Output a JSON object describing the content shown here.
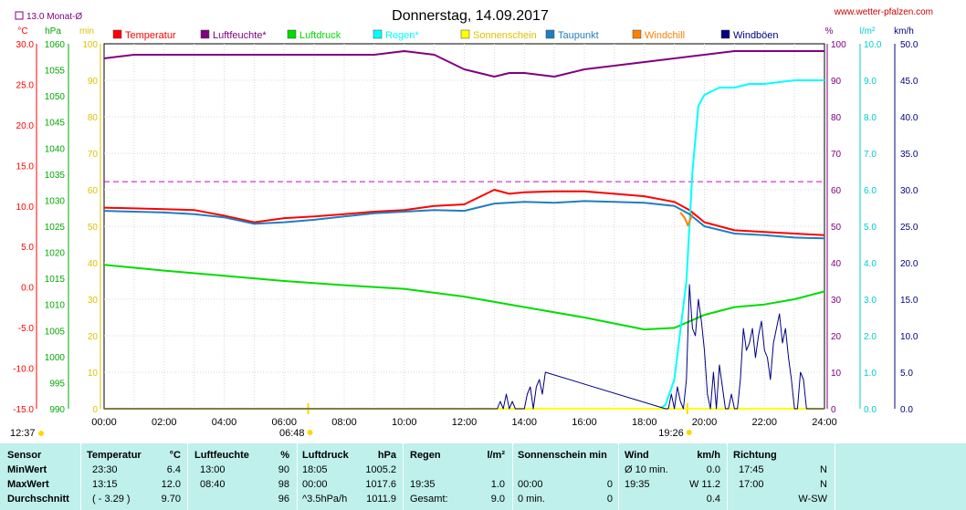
{
  "header": {
    "title": "Donnerstag, 14.09.2017",
    "url": "www.wetter-pfalzen.com",
    "month_avg": "13.0 Monat-Ø"
  },
  "legend": [
    {
      "label": "Temperatur",
      "color": "#ff0000"
    },
    {
      "label": "Luftfeuchte*",
      "color": "#800080"
    },
    {
      "label": "Luftdruck",
      "color": "#00dd00"
    },
    {
      "label": "Regen*",
      "color": "#00ffff"
    },
    {
      "label": "Sonnenschein",
      "color": "#ffff00"
    },
    {
      "label": "Taupunkt",
      "color": "#1e7fbf"
    },
    {
      "label": "Windchill",
      "color": "#ff8000"
    },
    {
      "label": "Windböen",
      "color": "#000080"
    }
  ],
  "chart_data": {
    "type": "line",
    "x_ticks": [
      "00:00",
      "02:00",
      "04:00",
      "06:00",
      "08:00",
      "10:00",
      "12:00",
      "14:00",
      "16:00",
      "18:00",
      "20:00",
      "22:00",
      "24:00"
    ],
    "time_markers": [
      {
        "label": "12:37",
        "hour": null,
        "color": "#ffd700"
      },
      {
        "label": "06:48",
        "hour": 6.8,
        "color": "#ffd700"
      },
      {
        "label": "19:26",
        "hour": 19.43,
        "color": "#ffd700"
      }
    ],
    "axes": {
      "temperature": {
        "unit": "°C",
        "range": [
          -15,
          30
        ],
        "ticks": [
          "30.0",
          "25.0",
          "20.0",
          "15.0",
          "10.0",
          "5.0",
          "0.0",
          "-5.0",
          "-10.0",
          "-15.0"
        ],
        "color": "#ff0000"
      },
      "pressure": {
        "unit": "hPa",
        "range": [
          990,
          1060
        ],
        "ticks": [
          "1060",
          "1055",
          "1050",
          "1045",
          "1040",
          "1035",
          "1030",
          "1025",
          "1020",
          "1015",
          "1010",
          "1005",
          "1000",
          "995",
          "990"
        ],
        "color": "#00aa00"
      },
      "sunshine": {
        "unit": "min",
        "range": [
          0,
          100
        ],
        "ticks": [
          "100",
          "90",
          "80",
          "70",
          "60",
          "50",
          "40",
          "30",
          "20",
          "10",
          "0"
        ],
        "color": "#ffd700"
      },
      "humidity": {
        "unit": "%",
        "range": [
          0,
          100
        ],
        "ticks": [
          "100",
          "90",
          "80",
          "70",
          "60",
          "50",
          "40",
          "30",
          "20",
          "10",
          "0"
        ],
        "color": "#800080"
      },
      "rain": {
        "unit": "l/m²",
        "range": [
          0,
          10
        ],
        "ticks": [
          "10.0",
          "9.0",
          "8.0",
          "7.0",
          "6.0",
          "5.0",
          "4.0",
          "3.0",
          "2.0",
          "1.0",
          "0.0"
        ],
        "color": "#00cccc"
      },
      "wind": {
        "unit": "km/h",
        "range": [
          0,
          50
        ],
        "ticks": [
          "50.0",
          "45.0",
          "40.0",
          "35.0",
          "30.0",
          "25.0",
          "20.0",
          "15.0",
          "10.0",
          "5.0",
          "0.0"
        ],
        "color": "#000080"
      }
    },
    "month_avg_temperature": 13.0,
    "series": [
      {
        "name": "Temperatur",
        "axis": "temperature",
        "color": "#ff0000",
        "x": [
          0,
          1,
          2,
          3,
          4,
          5,
          6,
          7,
          8,
          9,
          10,
          11,
          12,
          13,
          13.5,
          14,
          15,
          16,
          17,
          18,
          19,
          19.5,
          20,
          21,
          22,
          23,
          24
        ],
        "y": [
          9.8,
          9.7,
          9.6,
          9.5,
          8.8,
          8.0,
          8.5,
          8.7,
          9.0,
          9.3,
          9.5,
          10.0,
          10.2,
          12.0,
          11.5,
          11.7,
          11.8,
          11.8,
          11.5,
          11.2,
          10.5,
          9.5,
          8.0,
          7.0,
          6.8,
          6.6,
          6.4
        ]
      },
      {
        "name": "Luftfeuchte*",
        "axis": "humidity",
        "color": "#800080",
        "x": [
          0,
          1,
          2,
          3,
          4,
          5,
          6,
          7,
          8,
          9,
          10,
          11,
          12,
          13,
          13.5,
          14,
          15,
          16,
          17,
          18,
          19,
          20,
          21,
          22,
          23,
          24
        ],
        "y": [
          96,
          97,
          97,
          97,
          97,
          97,
          97,
          97,
          97,
          97,
          98,
          97,
          93,
          91,
          92,
          92,
          91,
          93,
          94,
          95,
          96,
          97,
          98,
          98,
          98,
          98
        ]
      },
      {
        "name": "Luftdruck",
        "axis": "pressure",
        "color": "#00dd00",
        "x": [
          0,
          2,
          4,
          6,
          8,
          10,
          12,
          14,
          16,
          18,
          19,
          20,
          21,
          22,
          23,
          24
        ],
        "y": [
          1017.6,
          1016.5,
          1015.5,
          1014.5,
          1013.7,
          1013.0,
          1011.5,
          1009.5,
          1007.5,
          1005.2,
          1005.5,
          1008.0,
          1009.5,
          1010.0,
          1011.0,
          1012.5
        ]
      },
      {
        "name": "Regen*",
        "axis": "rain",
        "color": "#00ffff",
        "x": [
          0,
          18.5,
          18.7,
          19.0,
          19.4,
          19.6,
          19.8,
          20,
          20.5,
          21,
          21.5,
          22,
          23,
          24
        ],
        "y": [
          0,
          0,
          0.1,
          0.8,
          3.5,
          6.5,
          8.3,
          8.6,
          8.8,
          8.8,
          8.9,
          8.9,
          9.0,
          9.0
        ]
      },
      {
        "name": "Sonnenschein",
        "axis": "sunshine",
        "color": "#ffff00",
        "x": [
          0,
          24
        ],
        "y": [
          0,
          0
        ]
      },
      {
        "name": "Taupunkt",
        "axis": "temperature",
        "color": "#1e7fbf",
        "x": [
          0,
          1,
          2,
          3,
          4,
          5,
          6,
          7,
          8,
          9,
          10,
          11,
          12,
          13,
          14,
          15,
          16,
          17,
          18,
          19,
          19.5,
          20,
          21,
          22,
          23,
          24
        ],
        "y": [
          9.4,
          9.3,
          9.2,
          9.0,
          8.6,
          7.8,
          8.0,
          8.3,
          8.7,
          9.1,
          9.3,
          9.5,
          9.4,
          10.3,
          10.5,
          10.4,
          10.6,
          10.5,
          10.4,
          10.0,
          9.0,
          7.5,
          6.6,
          6.4,
          6.1,
          6.0
        ]
      },
      {
        "name": "Windchill",
        "axis": "temperature",
        "color": "#ff8000",
        "x": [
          19.2,
          19.35,
          19.45,
          19.6
        ],
        "y": [
          9.2,
          8.5,
          7.6,
          9.0
        ]
      },
      {
        "name": "Windböen",
        "axis": "wind",
        "color": "#000080",
        "x": [
          0,
          13.0,
          13.1,
          13.2,
          13.3,
          13.4,
          13.5,
          13.6,
          13.7,
          13.8,
          14.0,
          14.1,
          14.2,
          14.3,
          14.4,
          14.5,
          14.6,
          14.7,
          18.7,
          18.8,
          18.9,
          19.0,
          19.1,
          19.2,
          19.3,
          19.4,
          19.5,
          19.6,
          19.7,
          19.8,
          19.9,
          20.0,
          20.1,
          20.2,
          20.3,
          20.4,
          20.5,
          20.6,
          20.7,
          20.8,
          20.9,
          21.0,
          21.1,
          21.2,
          21.3,
          21.4,
          21.5,
          21.6,
          21.7,
          21.8,
          21.9,
          22.0,
          22.1,
          22.2,
          22.3,
          22.4,
          22.5,
          22.6,
          22.7,
          22.8,
          22.9,
          23.0,
          23.1,
          23.2,
          23.3,
          23.4,
          23.5,
          24
        ],
        "y": [
          0,
          0,
          0,
          1,
          0,
          2,
          0,
          1,
          0,
          0,
          0,
          2,
          3,
          0,
          3,
          4,
          2,
          5,
          0,
          0,
          2,
          0,
          3,
          1,
          0,
          4,
          17,
          11,
          10,
          15,
          12,
          8,
          2,
          0,
          5,
          0,
          6,
          3,
          0,
          0,
          2,
          0,
          0,
          4,
          11,
          8,
          9,
          11,
          7,
          10,
          12,
          8,
          7,
          4,
          9,
          11,
          13,
          9,
          11,
          7,
          4,
          0,
          0,
          5,
          4,
          0,
          0,
          0
        ]
      }
    ]
  },
  "stats": {
    "headers": {
      "sensor": "Sensor",
      "temperature": "Temperatur",
      "temperature_unit": "°C",
      "humidity": "Luftfeuchte",
      "humidity_unit": "%",
      "pressure": "Luftdruck",
      "pressure_unit": "hPa",
      "rain": "Regen",
      "rain_unit": "l/m²",
      "sunshine": "Sonnenschein min",
      "wind": "Wind",
      "wind_unit": "km/h",
      "direction": "Richtung"
    },
    "rows": [
      {
        "label": "MinWert",
        "temp_time": "23:30",
        "temp_val": "6.4",
        "hum_time": "13:00",
        "hum_val": "90",
        "press_time": "18:05",
        "press_val": "1005.2",
        "rain_time": "",
        "rain_val": "",
        "sun_time": "",
        "sun_val": "",
        "wind_time": "Ø 10 min.",
        "wind_val": "0.0",
        "dir_time": "17:45",
        "dir_val": "N"
      },
      {
        "label": "MaxWert",
        "temp_time": "13:15",
        "temp_val": "12.0",
        "hum_time": "08:40",
        "hum_val": "98",
        "press_time": "00:00",
        "press_val": "1017.6",
        "rain_time": "19:35",
        "rain_val": "1.0",
        "sun_time": "00:00",
        "sun_val": "0",
        "wind_time": "19:35",
        "wind_val": "W 11.2",
        "dir_time": "17:00",
        "dir_val": "N"
      },
      {
        "label": "Durchschnitt",
        "temp_time": "( - 3.29 )",
        "temp_val": "9.70",
        "hum_time": "",
        "hum_val": "96",
        "press_time": "^3.5hPa/h",
        "press_val": "1011.9",
        "rain_time": "Gesamt:",
        "rain_val": "9.0",
        "sun_time": "0 min.",
        "sun_val": "0",
        "wind_time": "",
        "wind_val": "0.4",
        "dir_time": "",
        "dir_val": "W-SW"
      }
    ]
  }
}
